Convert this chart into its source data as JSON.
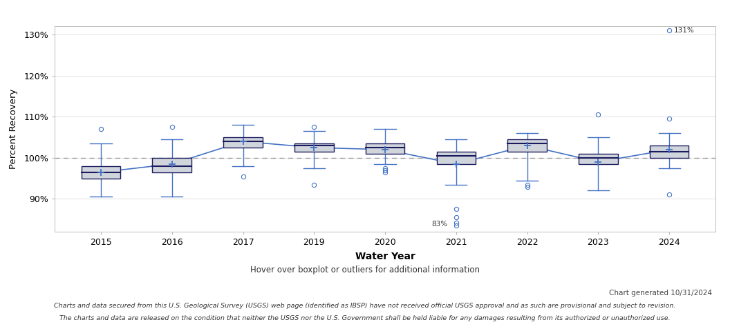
{
  "years": [
    2015,
    2016,
    2017,
    2019,
    2020,
    2021,
    2022,
    2023,
    2024
  ],
  "boxes": [
    {
      "q1": 95.0,
      "median": 96.5,
      "q3": 98.0,
      "mean": 96.5,
      "whisker_low": 90.5,
      "whisker_high": 103.5,
      "outliers": [
        107.0
      ]
    },
    {
      "q1": 96.5,
      "median": 98.0,
      "q3": 100.0,
      "mean": 98.5,
      "whisker_low": 90.5,
      "whisker_high": 104.5,
      "outliers": [
        107.5
      ]
    },
    {
      "q1": 102.5,
      "median": 104.0,
      "q3": 105.0,
      "mean": 104.0,
      "whisker_low": 98.0,
      "whisker_high": 108.0,
      "outliers": [
        95.5
      ]
    },
    {
      "q1": 101.5,
      "median": 103.0,
      "q3": 103.5,
      "mean": 102.5,
      "whisker_low": 97.5,
      "whisker_high": 106.5,
      "outliers": [
        107.5,
        93.5
      ]
    },
    {
      "q1": 101.0,
      "median": 102.5,
      "q3": 103.5,
      "mean": 102.0,
      "whisker_low": 98.5,
      "whisker_high": 107.0,
      "outliers": [
        97.0,
        97.5,
        96.5
      ]
    },
    {
      "q1": 98.5,
      "median": 100.5,
      "q3": 101.5,
      "mean": 98.5,
      "whisker_low": 93.5,
      "whisker_high": 104.5,
      "outliers": [
        87.5,
        85.5
      ]
    },
    {
      "q1": 101.5,
      "median": 103.5,
      "q3": 104.5,
      "mean": 103.0,
      "whisker_low": 94.5,
      "whisker_high": 106.0,
      "outliers": [
        93.5,
        93.0
      ]
    },
    {
      "q1": 98.5,
      "median": 100.0,
      "q3": 101.0,
      "mean": 99.0,
      "whisker_low": 92.0,
      "whisker_high": 105.0,
      "outliers": [
        110.5
      ]
    },
    {
      "q1": 100.0,
      "median": 101.5,
      "q3": 103.0,
      "mean": 102.0,
      "whisker_low": 97.5,
      "whisker_high": 106.0,
      "outliers": [
        91.0,
        109.5
      ]
    }
  ],
  "mean_line_values": [
    96.5,
    98.5,
    104.0,
    102.5,
    102.0,
    98.5,
    103.0,
    99.0,
    102.0
  ],
  "outlier_2021_far": [
    83.5,
    84.2
  ],
  "outlier_2024_far": 131.0,
  "ref_line": 100,
  "ylim": [
    82,
    132
  ],
  "yticks": [
    90,
    100,
    110,
    120,
    130
  ],
  "ytick_labels": [
    "90%",
    "100%",
    "110%",
    "120%",
    "130%"
  ],
  "ylabel": "Percent Recovery",
  "xlabel": "Water Year",
  "box_color": "#d0d5dc",
  "box_edge_color": "#1a1a5e",
  "line_color": "#4472c4",
  "whisker_color": "#4472c4",
  "mean_marker_color": "#4472c4",
  "outlier_color": "#4472c4",
  "ref_line_color": "#999999",
  "subtitle": "Hover over boxplot or outliers for additional information",
  "footnote1": "Chart generated 10/31/2024",
  "footnote2": "Charts and data secured from this U.S. Geological Survey (USGS) web page (identified as IBSP) have not received official USGS approval and as such are provisional and subject to revision.",
  "footnote3": "The charts and data are released on the condition that neither the USGS nor the U.S. Government shall be held liable for any damages resulting from its authorized or unauthorized use.",
  "box_width": 0.55
}
